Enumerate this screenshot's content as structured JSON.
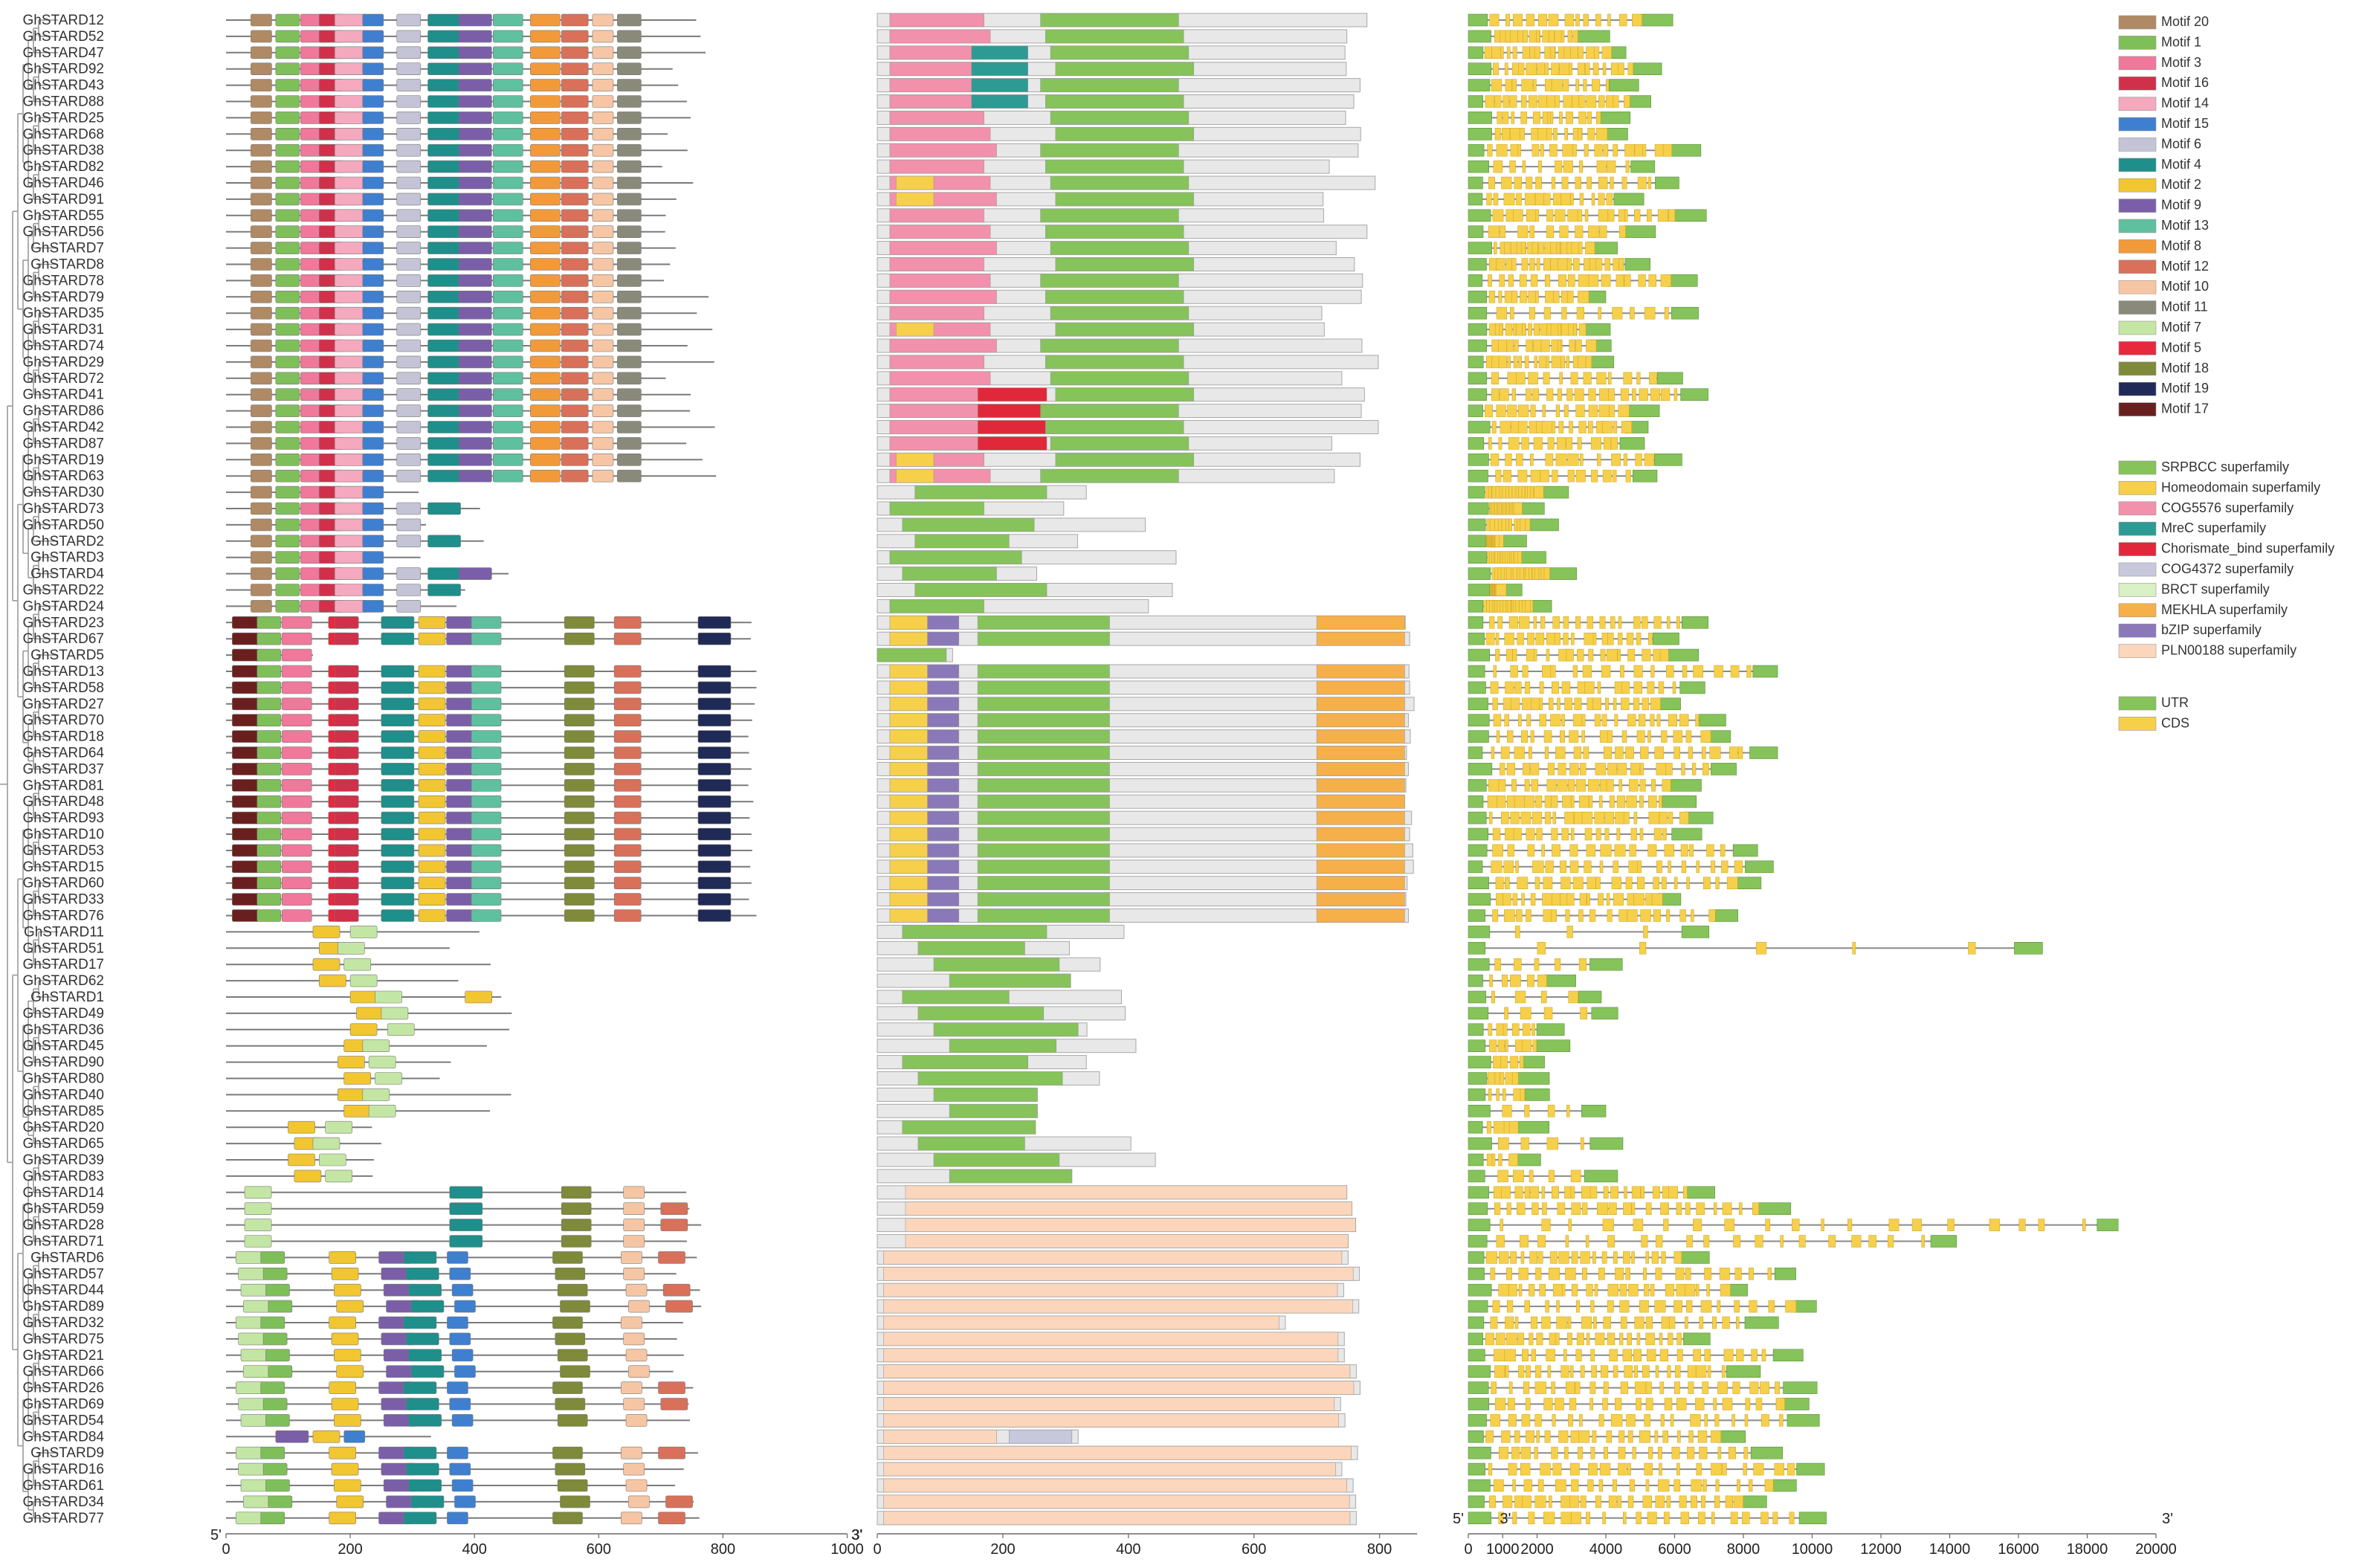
{
  "genes": [
    "GhSTARD12",
    "GhSTARD52",
    "GhSTARD47",
    "GhSTARD92",
    "GhSTARD43",
    "GhSTARD88",
    "GhSTARD25",
    "GhSTARD68",
    "GhSTARD38",
    "GhSTARD82",
    "GhSTARD46",
    "GhSTARD91",
    "GhSTARD55",
    "GhSTARD56",
    "GhSTARD7",
    "GhSTARD8",
    "GhSTARD78",
    "GhSTARD79",
    "GhSTARD35",
    "GhSTARD31",
    "GhSTARD74",
    "GhSTARD29",
    "GhSTARD72",
    "GhSTARD41",
    "GhSTARD86",
    "GhSTARD42",
    "GhSTARD87",
    "GhSTARD19",
    "GhSTARD63",
    "GhSTARD30",
    "GhSTARD73",
    "GhSTARD50",
    "GhSTARD2",
    "GhSTARD3",
    "GhSTARD4",
    "GhSTARD22",
    "GhSTARD24",
    "GhSTARD23",
    "GhSTARD67",
    "GhSTARD5",
    "GhSTARD13",
    "GhSTARD58",
    "GhSTARD27",
    "GhSTARD70",
    "GhSTARD18",
    "GhSTARD64",
    "GhSTARD37",
    "GhSTARD81",
    "GhSTARD48",
    "GhSTARD93",
    "GhSTARD10",
    "GhSTARD53",
    "GhSTARD15",
    "GhSTARD60",
    "GhSTARD33",
    "GhSTARD76",
    "GhSTARD11",
    "GhSTARD51",
    "GhSTARD17",
    "GhSTARD62",
    "GhSTARD1",
    "GhSTARD49",
    "GhSTARD36",
    "GhSTARD45",
    "GhSTARD90",
    "GhSTARD80",
    "GhSTARD40",
    "GhSTARD85",
    "GhSTARD20",
    "GhSTARD65",
    "GhSTARD39",
    "GhSTARD83",
    "GhSTARD14",
    "GhSTARD59",
    "GhSTARD28",
    "GhSTARD71",
    "GhSTARD6",
    "GhSTARD57",
    "GhSTARD44",
    "GhSTARD89",
    "GhSTARD32",
    "GhSTARD75",
    "GhSTARD21",
    "GhSTARD66",
    "GhSTARD26",
    "GhSTARD69",
    "GhSTARD54",
    "GhSTARD84",
    "GhSTARD9",
    "GhSTARD16",
    "GhSTARD61",
    "GhSTARD34",
    "GhSTARD77"
  ],
  "motif_legend": [
    {
      "label": "Motif 20",
      "color": "#b08a64"
    },
    {
      "label": "Motif 1",
      "color": "#7fbf5a"
    },
    {
      "label": "Motif 3",
      "color": "#f0789a"
    },
    {
      "label": "Motif 16",
      "color": "#d0304a"
    },
    {
      "label": "Motif 14",
      "color": "#f4a9be"
    },
    {
      "label": "Motif 15",
      "color": "#3f7fd0"
    },
    {
      "label": "Motif 6",
      "color": "#c4c4d6"
    },
    {
      "label": "Motif 4",
      "color": "#1e8f8a"
    },
    {
      "label": "Motif 2",
      "color": "#f2c630"
    },
    {
      "label": "Motif 9",
      "color": "#7a5fa8"
    },
    {
      "label": "Motif 13",
      "color": "#5fc0a0"
    },
    {
      "label": "Motif 8",
      "color": "#f29a3a"
    },
    {
      "label": "Motif 12",
      "color": "#d9705a"
    },
    {
      "label": "Motif 10",
      "color": "#f6c6a4"
    },
    {
      "label": "Motif 11",
      "color": "#8a8a7a"
    },
    {
      "label": "Motif 7",
      "color": "#c4e6a4"
    },
    {
      "label": "Motif 5",
      "color": "#e8283c"
    },
    {
      "label": "Motif 18",
      "color": "#7f8a3a"
    },
    {
      "label": "Motif 19",
      "color": "#1f2a56"
    },
    {
      "label": "Motif 17",
      "color": "#6a1f1f"
    }
  ],
  "domain_legend": [
    {
      "label": "SRPBCC superfamily",
      "color": "#86c35a"
    },
    {
      "label": "Homeodomain superfamily",
      "color": "#f6d04a"
    },
    {
      "label": "COG5576 superfamily",
      "color": "#f291ab"
    },
    {
      "label": "MreC superfamily",
      "color": "#2d9a94"
    },
    {
      "label": "Chorismate_bind superfamily",
      "color": "#e0283a"
    },
    {
      "label": "COG4372 superfamily",
      "color": "#c8c8dc"
    },
    {
      "label": "BRCT superfamily",
      "color": "#d8f0c4"
    },
    {
      "label": "MEKHLA superfamily",
      "color": "#f6b04a"
    },
    {
      "label": "bZIP superfamily",
      "color": "#8a78b8"
    },
    {
      "label": "PLN00188 superfamily",
      "color": "#fbd6bc"
    }
  ],
  "structure_legend": [
    {
      "label": "UTR",
      "color": "#86c35a"
    },
    {
      "label": "CDS",
      "color": "#f6d04a"
    }
  ],
  "axes": {
    "motif": {
      "ticks": [
        "0",
        "200",
        "400",
        "600",
        "800",
        "1000"
      ],
      "left_end": "5'",
      "right_end": "3'"
    },
    "domain": {
      "ticks": [
        "0",
        "200",
        "400",
        "600",
        "800"
      ],
      "left_end": "3'"
    },
    "structure": {
      "ticks": [
        "0",
        "1000",
        "2000",
        "4000",
        "6000",
        "8000",
        "10000",
        "12000",
        "14000",
        "16000",
        "18000",
        "20000"
      ],
      "left_end": "5'",
      "second_end": "3'",
      "right_end": "3'"
    }
  }
}
